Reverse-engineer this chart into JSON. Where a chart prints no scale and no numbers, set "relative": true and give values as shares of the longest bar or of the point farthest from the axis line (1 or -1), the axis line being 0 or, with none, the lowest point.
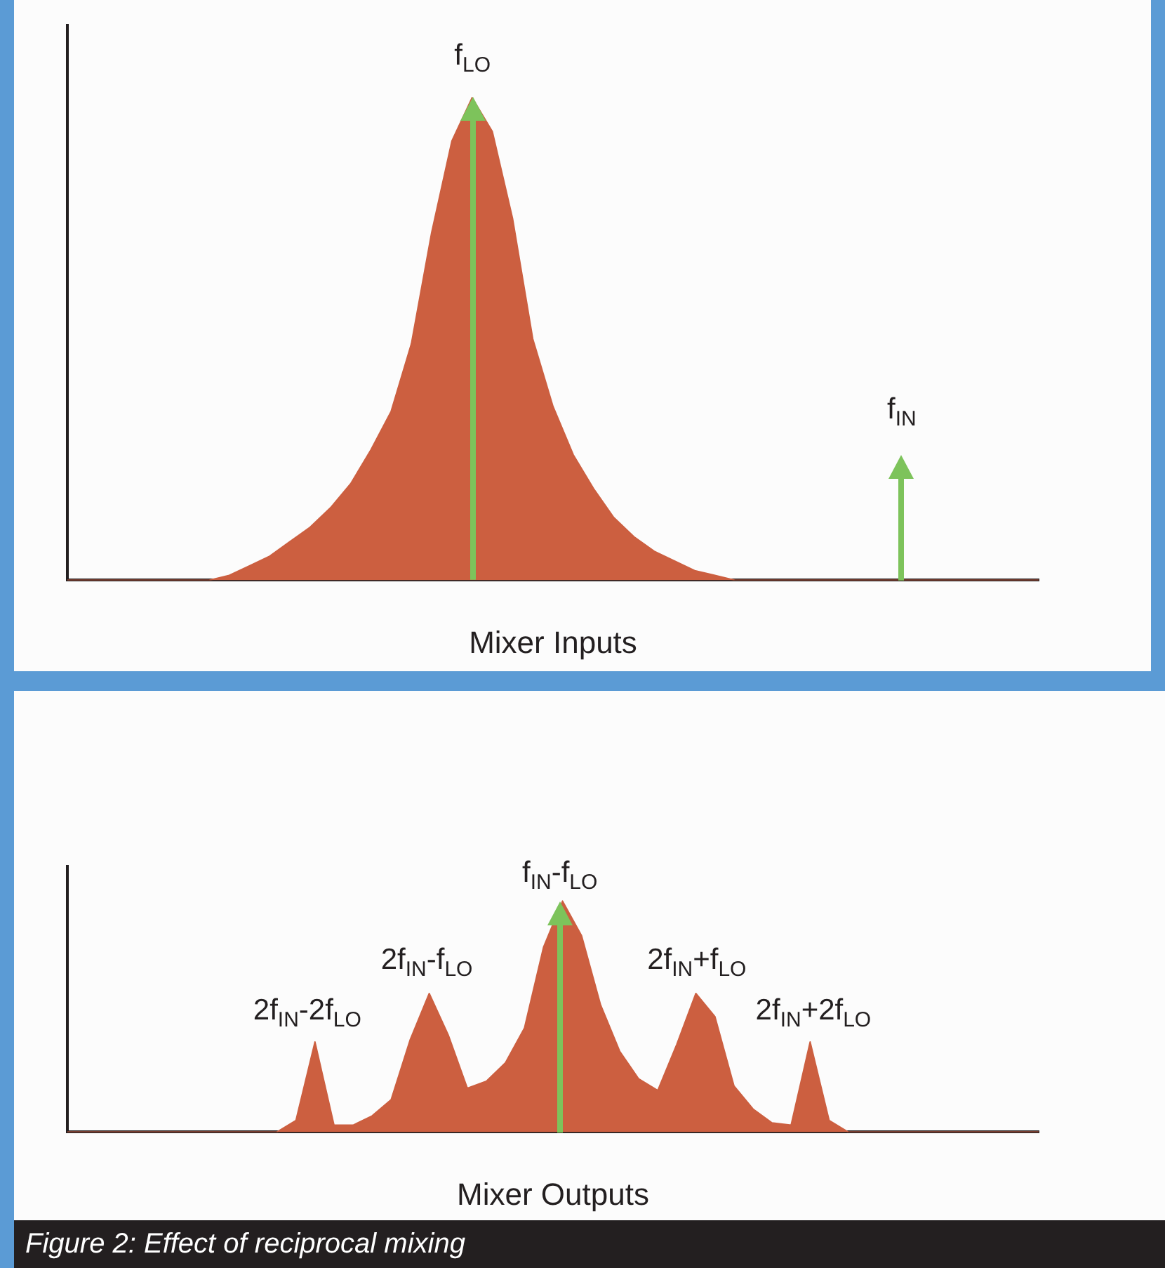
{
  "chart_data": [
    {
      "type": "area",
      "xlabel": "Mixer Inputs",
      "relative": true,
      "grid": false,
      "annotations": [
        "f$_{LO}$",
        "f$_{IN}$"
      ],
      "categories": [
        null,
        null,
        null,
        null,
        null,
        null,
        null,
        null,
        null,
        null,
        null,
        null,
        null,
        null,
        null,
        null,
        null,
        null,
        null,
        null,
        null,
        null,
        null,
        null,
        null,
        null,
        null,
        null,
        null,
        null,
        null,
        null,
        null,
        null,
        null,
        null,
        null,
        null,
        null,
        null,
        null,
        null,
        null,
        null,
        null,
        null,
        null,
        null,
        null
      ],
      "series": [
        {
          "color": "#cc5f40",
          "values": [
            0,
            0,
            0,
            0,
            0,
            0,
            0,
            0,
            0.01,
            0.03,
            0.05,
            0.08,
            0.11,
            0.15,
            0.2,
            0.27,
            0.35,
            0.49,
            0.72,
            0.91,
            1,
            0.93,
            0.75,
            0.5,
            0.36,
            0.26,
            0.19,
            0.13,
            0.09,
            0.06,
            0.04,
            0.02,
            0.01,
            0,
            0,
            0,
            0,
            0,
            0,
            0,
            0,
            0,
            0,
            0,
            0,
            0,
            0,
            0,
            0
          ]
        }
      ]
    },
    {
      "type": "area",
      "xlabel": "Mixer Outputs",
      "relative": true,
      "grid": false,
      "annotations": [
        "2f$_{IN}$-2f$_{LO}$",
        "2f$_{IN}$-f$_{LO}$",
        "f$_{IN}$-f$_{LO}$",
        "2f$_{IN}$+f$_{LO}$",
        "2f$_{IN}$+2f$_{LO}$",
        "Figure 2: Effect of reciprocal mixing"
      ],
      "categories": [
        null,
        null,
        null,
        null,
        null,
        null,
        null,
        null,
        null,
        null,
        null,
        null,
        null,
        null,
        null,
        null,
        null,
        null,
        null,
        null,
        null,
        null,
        null,
        null,
        null,
        null,
        null,
        null,
        null,
        null,
        null,
        null,
        null,
        null,
        null,
        null,
        null,
        null,
        null,
        null,
        null,
        null,
        null,
        null,
        null,
        null,
        null,
        null,
        null,
        null,
        null,
        null
      ],
      "series": [
        {
          "color": "#cc5f40",
          "values": [
            0,
            0,
            0,
            0,
            0,
            0,
            0,
            0,
            0,
            0,
            0,
            0,
            0.05,
            0.39,
            0.03,
            0.03,
            0.07,
            0.14,
            0.4,
            0.6,
            0.42,
            0.19,
            0.22,
            0.3,
            0.45,
            0.8,
            1,
            0.85,
            0.55,
            0.35,
            0.23,
            0.18,
            0.38,
            0.6,
            0.5,
            0.2,
            0.1,
            0.04,
            0.03,
            0.39,
            0.05,
            0,
            0,
            0,
            0,
            0,
            0,
            0,
            0,
            0,
            0,
            0
          ]
        }
      ]
    }
  ]
}
